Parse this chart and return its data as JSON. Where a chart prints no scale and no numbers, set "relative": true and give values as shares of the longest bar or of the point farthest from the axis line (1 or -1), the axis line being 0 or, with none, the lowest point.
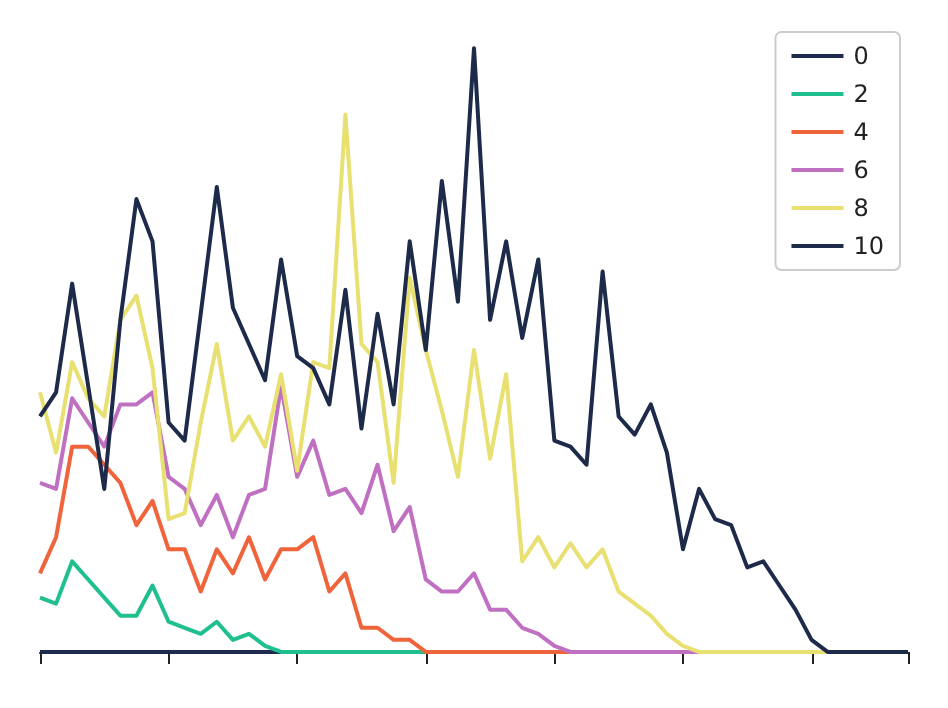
{
  "chart_data": {
    "type": "line",
    "relative": true,
    "tick_labels": false,
    "grid": false,
    "legend": "top right",
    "marker": "none",
    "categories": [
      null,
      null,
      null,
      null,
      null,
      null,
      null,
      null,
      null,
      null,
      null,
      null,
      null,
      null,
      null,
      null,
      null,
      null,
      null,
      null,
      null,
      null,
      null,
      null,
      null,
      null,
      null,
      null,
      null,
      null,
      null,
      null,
      null,
      null,
      null,
      null,
      null,
      null,
      null,
      null,
      null,
      null,
      null,
      null,
      null,
      null,
      null,
      null,
      null,
      null,
      null,
      null,
      null,
      null,
      null
    ],
    "series": [
      {
        "name": "0",
        "color": "#1f2b4d",
        "values": [
          0,
          0,
          0,
          0,
          0,
          0,
          0,
          0,
          0,
          0,
          0,
          0,
          0,
          0,
          0,
          0,
          null,
          null,
          null,
          null,
          null,
          null,
          null,
          null,
          null,
          null,
          null,
          null,
          null,
          null,
          null,
          null,
          null,
          null,
          null,
          null,
          null,
          null,
          null,
          null,
          null,
          null,
          null,
          null,
          null,
          null,
          null,
          null,
          null,
          null,
          null,
          null,
          null,
          null,
          null
        ]
      },
      {
        "name": "2",
        "color": "#1fbf8f",
        "values": [
          0.09,
          0.08,
          0.15,
          0.12,
          0.09,
          0.06,
          0.06,
          0.11,
          0.05,
          0.04,
          0.03,
          0.05,
          0.02,
          0.03,
          0.01,
          0,
          0,
          0,
          0,
          0,
          0,
          0,
          0,
          0,
          0,
          null,
          null,
          null,
          null,
          null,
          null,
          null,
          null,
          null,
          null,
          null,
          null,
          null,
          null,
          null,
          null,
          null,
          null,
          null,
          null,
          null,
          null,
          null,
          null,
          null,
          null,
          null,
          null,
          null,
          null
        ]
      },
      {
        "name": "4",
        "color": "#f0643c",
        "values": [
          0.13,
          0.19,
          0.34,
          0.34,
          0.31,
          0.28,
          0.21,
          0.25,
          0.17,
          0.17,
          0.1,
          0.17,
          0.13,
          0.19,
          0.12,
          0.17,
          0.17,
          0.19,
          0.1,
          0.13,
          0.04,
          0.04,
          0.02,
          0.02,
          0,
          0,
          0,
          0,
          0,
          0,
          0,
          0,
          0,
          0,
          0,
          null,
          null,
          null,
          null,
          null,
          null,
          null,
          null,
          null,
          null,
          null,
          null,
          null,
          null,
          null,
          null,
          null,
          null,
          null,
          null
        ]
      },
      {
        "name": "6",
        "color": "#c070c0",
        "values": [
          0.28,
          0.27,
          0.42,
          0.38,
          0.34,
          0.41,
          0.41,
          0.43,
          0.29,
          0.27,
          0.21,
          0.26,
          0.19,
          0.26,
          0.27,
          0.44,
          0.29,
          0.35,
          0.26,
          0.27,
          0.23,
          0.31,
          0.2,
          0.24,
          0.12,
          0.1,
          0.1,
          0.13,
          0.07,
          0.07,
          0.04,
          0.03,
          0.01,
          0,
          0,
          0,
          0,
          0,
          0,
          0,
          0,
          0,
          0,
          null,
          null,
          null,
          null,
          null,
          null,
          null,
          null,
          null,
          null,
          null,
          null
        ]
      },
      {
        "name": "8",
        "color": "#e8e070",
        "values": [
          0.43,
          0.33,
          0.48,
          0.42,
          0.39,
          0.55,
          0.59,
          0.47,
          0.22,
          0.23,
          0.38,
          0.51,
          0.35,
          0.39,
          0.34,
          0.46,
          0.3,
          0.48,
          0.47,
          0.89,
          0.51,
          0.48,
          0.28,
          0.62,
          0.5,
          0.4,
          0.29,
          0.5,
          0.32,
          0.46,
          0.15,
          0.19,
          0.14,
          0.18,
          0.14,
          0.17,
          0.1,
          0.08,
          0.06,
          0.03,
          0.01,
          0,
          0,
          0,
          0,
          0,
          0,
          0,
          0,
          0,
          null,
          null,
          null,
          null,
          null
        ]
      },
      {
        "name": "10",
        "color": "#1e2a4a",
        "values": [
          0.39,
          0.43,
          0.61,
          0.44,
          0.27,
          0.55,
          0.75,
          0.68,
          0.38,
          0.35,
          0.56,
          0.77,
          0.57,
          0.51,
          0.45,
          0.65,
          0.49,
          0.47,
          0.41,
          0.6,
          0.37,
          0.56,
          0.41,
          0.68,
          0.5,
          0.78,
          0.58,
          1,
          0.55,
          0.68,
          0.52,
          0.65,
          0.35,
          0.34,
          0.31,
          0.63,
          0.39,
          0.36,
          0.41,
          0.33,
          0.17,
          0.27,
          0.22,
          0.21,
          0.14,
          0.15,
          0.11,
          0.07,
          0.02,
          0,
          0,
          0,
          0,
          0,
          0
        ]
      }
    ]
  }
}
